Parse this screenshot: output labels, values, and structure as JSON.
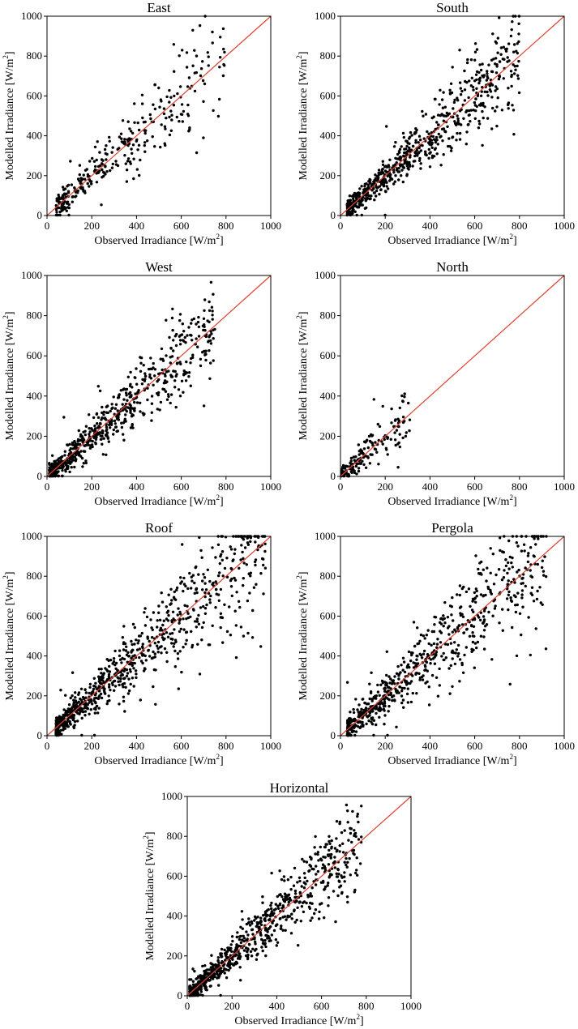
{
  "figure": {
    "x_label_prefix": "Observed Irradiance [W/m",
    "y_label_prefix": "Modelled Irradiance [W/m",
    "label_sup": "2",
    "label_suffix": "]",
    "ref_line_color": "#e0402f",
    "point_color": "#000000"
  },
  "chart_data": [
    {
      "type": "scatter",
      "title": "East",
      "xlabel": "Observed Irradiance [W/m2]",
      "ylabel": "Modelled Irradiance [W/m2]",
      "xlim": [
        0,
        1000
      ],
      "ylim": [
        0,
        1000
      ],
      "xticks": [
        0,
        200,
        400,
        600,
        800,
        1000
      ],
      "yticks": [
        0,
        200,
        400,
        600,
        800,
        1000
      ],
      "reference_line": "y = x",
      "n_points": 320,
      "x_range": [
        40,
        800
      ],
      "scatter_spread": 0.2
    },
    {
      "type": "scatter",
      "title": "South",
      "xlabel": "Observed Irradiance [W/m2]",
      "ylabel": "Modelled Irradiance [W/m2]",
      "xlim": [
        0,
        1000
      ],
      "ylim": [
        0,
        1000
      ],
      "xticks": [
        0,
        200,
        400,
        600,
        800,
        1000
      ],
      "yticks": [
        0,
        200,
        400,
        600,
        800,
        1000
      ],
      "reference_line": "y = x",
      "n_points": 700,
      "x_range": [
        30,
        800
      ],
      "scatter_spread": 0.18
    },
    {
      "type": "scatter",
      "title": "West",
      "xlabel": "Observed Irradiance [W/m2]",
      "ylabel": "Modelled Irradiance [W/m2]",
      "xlim": [
        0,
        1000
      ],
      "ylim": [
        0,
        1000
      ],
      "xticks": [
        0,
        200,
        400,
        600,
        800,
        1000
      ],
      "yticks": [
        0,
        200,
        400,
        600,
        800,
        1000
      ],
      "reference_line": "y = x",
      "n_points": 650,
      "x_range": [
        10,
        750
      ],
      "scatter_spread": 0.18
    },
    {
      "type": "scatter",
      "title": "North",
      "xlabel": "Observed Irradiance [W/m2]",
      "ylabel": "Modelled Irradiance [W/m2]",
      "xlim": [
        0,
        1000
      ],
      "ylim": [
        0,
        1000
      ],
      "xticks": [
        0,
        200,
        400,
        600,
        800,
        1000
      ],
      "yticks": [
        0,
        200,
        400,
        600,
        800,
        1000
      ],
      "reference_line": "y = x",
      "n_points": 160,
      "x_range": [
        5,
        320
      ],
      "scatter_spread": 0.25
    },
    {
      "type": "scatter",
      "title": "Roof",
      "xlabel": "Observed Irradiance [W/m2]",
      "ylabel": "Modelled Irradiance [W/m2]",
      "xlim": [
        0,
        1000
      ],
      "ylim": [
        0,
        1000
      ],
      "xticks": [
        0,
        200,
        400,
        600,
        800,
        1000
      ],
      "yticks": [
        0,
        200,
        400,
        600,
        800,
        1000
      ],
      "reference_line": "y = x",
      "n_points": 800,
      "x_range": [
        40,
        980
      ],
      "scatter_spread": 0.2
    },
    {
      "type": "scatter",
      "title": "Pergola",
      "xlabel": "Observed Irradiance [W/m2]",
      "ylabel": "Modelled Irradiance [W/m2]",
      "xlim": [
        0,
        1000
      ],
      "ylim": [
        0,
        1000
      ],
      "xticks": [
        0,
        200,
        400,
        600,
        800,
        1000
      ],
      "yticks": [
        0,
        200,
        400,
        600,
        800,
        1000
      ],
      "reference_line": "y = x",
      "n_points": 700,
      "x_range": [
        30,
        920
      ],
      "scatter_spread": 0.22
    },
    {
      "type": "scatter",
      "title": "Horizontal",
      "xlabel": "Observed Irradiance [W/m2]",
      "ylabel": "Modelled Irradiance [W/m2]",
      "xlim": [
        0,
        1000
      ],
      "ylim": [
        0,
        1000
      ],
      "xticks": [
        0,
        200,
        400,
        600,
        800,
        1000
      ],
      "yticks": [
        0,
        200,
        400,
        600,
        800,
        1000
      ],
      "reference_line": "y = x",
      "n_points": 800,
      "x_range": [
        10,
        780
      ],
      "scatter_spread": 0.16
    }
  ]
}
